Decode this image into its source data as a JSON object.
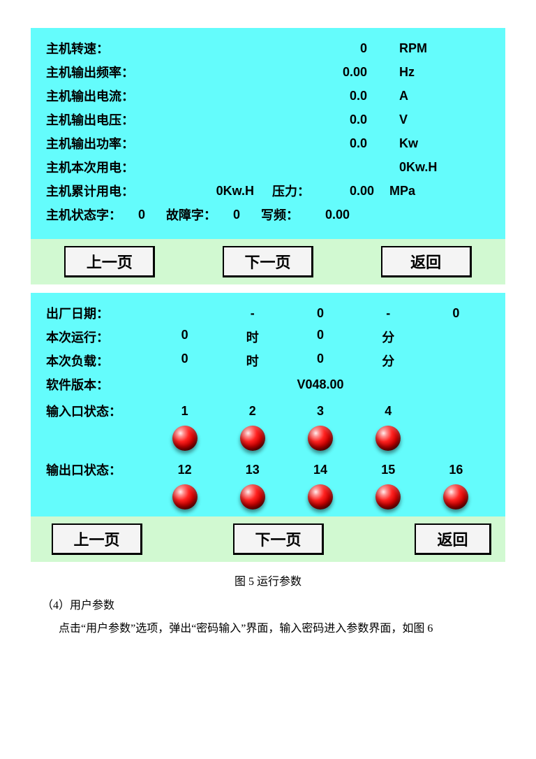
{
  "colors": {
    "panel_bg": "#64fcfc",
    "button_bg": "#f4f4f4",
    "button_bar_bg": "#d1f9d1",
    "led_center": "#ff2220",
    "led_edge": "#730000",
    "text": "#000000"
  },
  "panel1": {
    "rows": [
      {
        "label": "主机转速：",
        "value": "0",
        "unit": "RPM"
      },
      {
        "label": "主机输出频率：",
        "value": "0.00",
        "unit": "Hz"
      },
      {
        "label": "主机输出电流：",
        "value": "0.0",
        "unit": "A"
      },
      {
        "label": "主机输出电压：",
        "value": "0.0",
        "unit": "V"
      },
      {
        "label": "主机输出功率：",
        "value": "0.0",
        "unit": "Kw"
      }
    ],
    "row6_label": "主机本次用电：",
    "row6_value": "0Kw.H",
    "row7": {
      "label": "主机累计用电：",
      "total_value": "0Kw.H",
      "pressure_label": "压力：",
      "pressure_value": "0.00",
      "pressure_unit": "MPa"
    },
    "row8": {
      "state_label": "主机状态字：",
      "state_value": "0",
      "fault_label": "故障字：",
      "fault_value": "0",
      "writefreq_label": "写频：",
      "writefreq_value": "0.00"
    },
    "buttons": {
      "prev": "上一页",
      "next": "下一页",
      "back": "返回"
    }
  },
  "panel2": {
    "factory_label": "出厂日期：",
    "factory_parts": {
      "p1": "",
      "d1": "-",
      "p2": "0",
      "d2": "-",
      "p3": "0"
    },
    "runtime_rows": [
      {
        "label": "本次运行：",
        "h": "0",
        "h_unit": "时",
        "m": "0",
        "m_unit": "分"
      },
      {
        "label": "本次负载：",
        "h": "0",
        "h_unit": "时",
        "m": "0",
        "m_unit": "分"
      }
    ],
    "version_label": "软件版本：",
    "version_value": "V048.00",
    "input_label": "输入口状态：",
    "input_ids": [
      "1",
      "2",
      "3",
      "4"
    ],
    "input_led_count": 4,
    "output_label": "输出口状态：",
    "output_ids": [
      "12",
      "13",
      "14",
      "15",
      "16"
    ],
    "output_led_count": 5,
    "buttons": {
      "prev": "上一页",
      "next": "下一页",
      "back": "返回"
    }
  },
  "doc": {
    "caption": "图 5  运行参数",
    "line1": "（4）用户参数",
    "line2": "点击“用户参数”选项，弹出“密码输入”界面，输入密码进入参数界面，如图 6"
  }
}
